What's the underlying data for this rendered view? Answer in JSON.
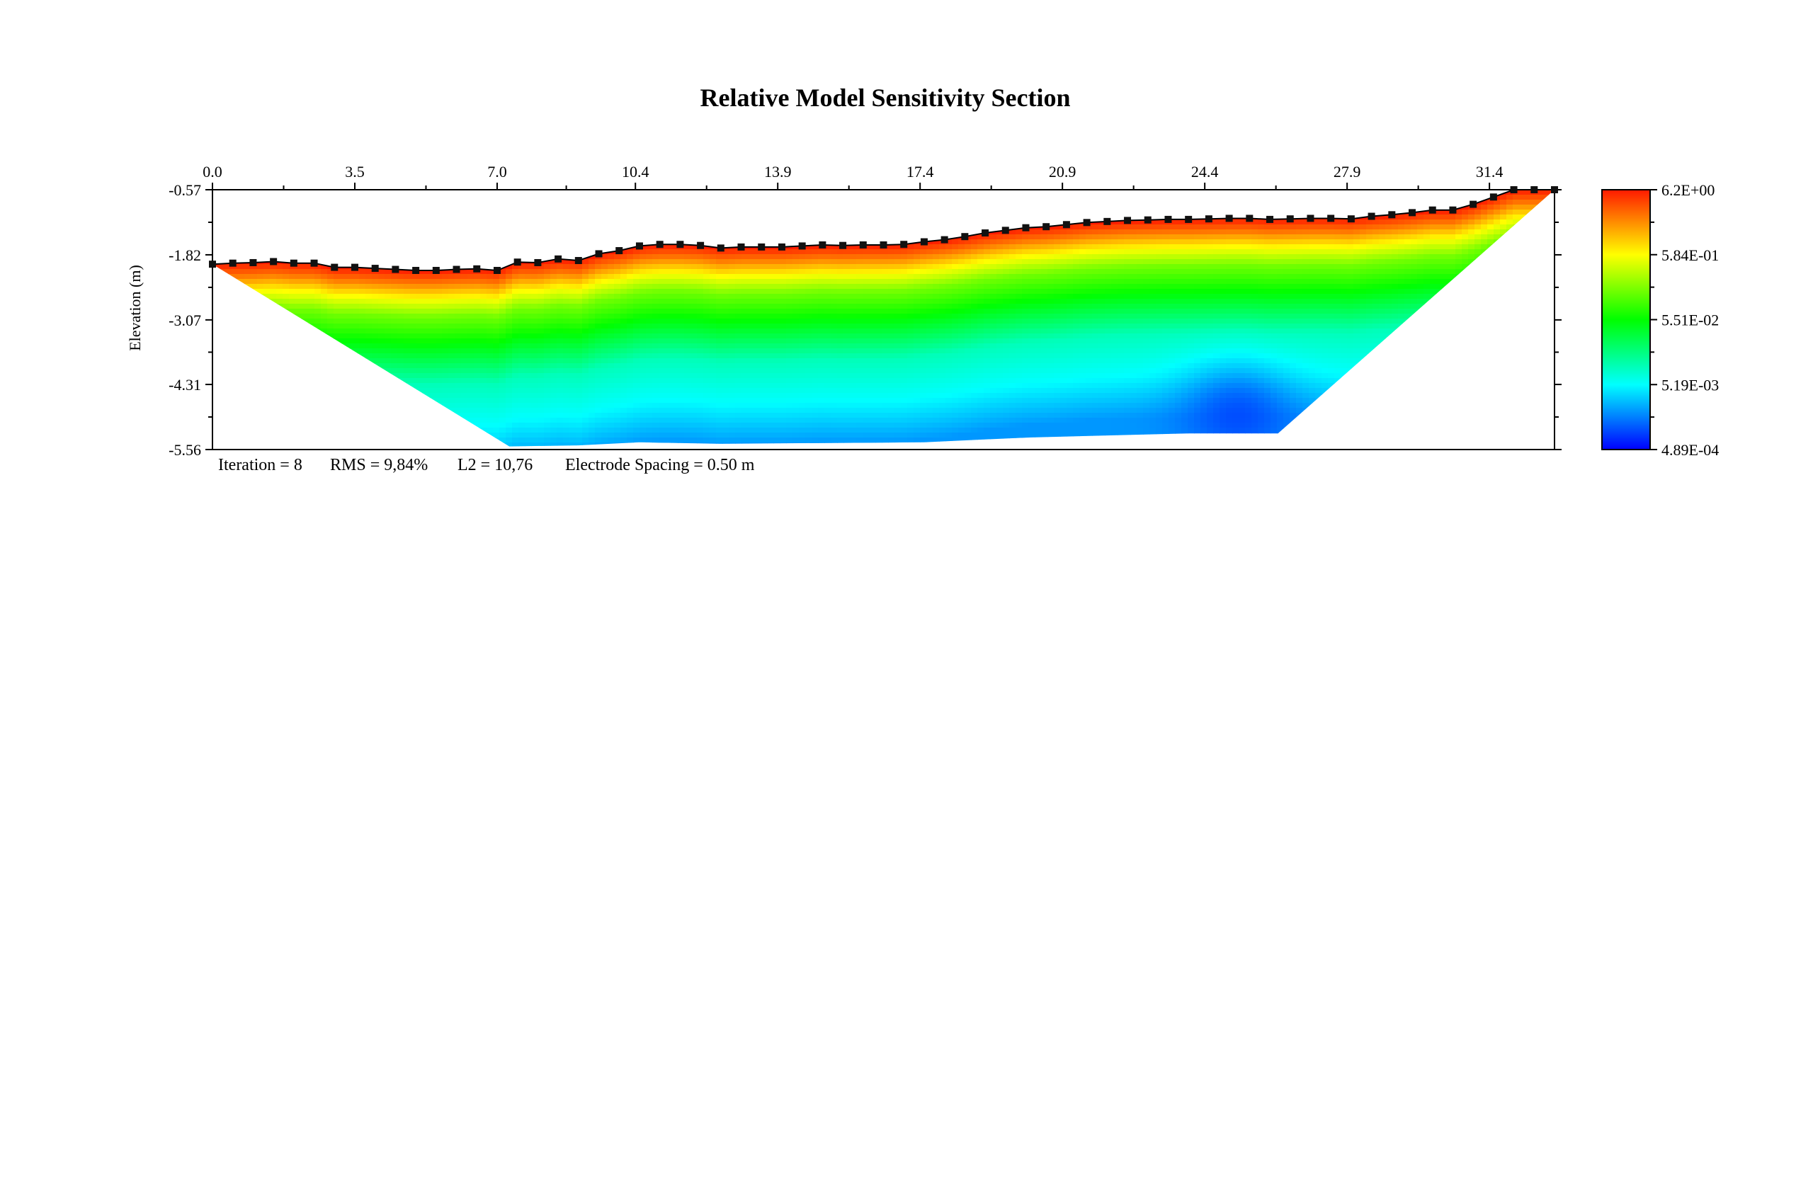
{
  "chart_data": {
    "type": "heatmap",
    "title": "Relative Model Sensitivity Section",
    "ylabel": "Elevation (m)",
    "xlabel": "",
    "x_ticks": [
      "0.0",
      "3.5",
      "7.0",
      "10.4",
      "13.9",
      "17.4",
      "20.9",
      "24.4",
      "27.9",
      "31.4"
    ],
    "y_ticks": [
      "-0.57",
      "-1.82",
      "-3.07",
      "-4.31",
      "-5.56"
    ],
    "x_range": [
      0.0,
      33.0
    ],
    "y_range": [
      -5.56,
      -0.57
    ],
    "colorbar": {
      "labels": [
        "6.2E+00",
        "5.84E-01",
        "5.51E-02",
        "5.19E-03",
        "4.89E-04"
      ],
      "colors": [
        "#ff1a00",
        "#ffff00",
        "#00ff00",
        "#00ffff",
        "#0000ff"
      ],
      "scale": "log"
    },
    "footer": {
      "iteration": "Iteration = 8",
      "rms": "RMS = 9,84%",
      "l2": "L2 = 10,76",
      "spacing": "Electrode Spacing = 0.50 m"
    },
    "surface_profile": {
      "x": [
        0.0,
        0.5,
        1.0,
        1.5,
        2.0,
        2.5,
        3.0,
        3.5,
        4.0,
        4.5,
        5.0,
        5.5,
        6.0,
        6.5,
        7.0,
        7.5,
        8.0,
        8.5,
        9.0,
        9.5,
        10.0,
        10.5,
        11.0,
        11.5,
        12.0,
        12.5,
        13.0,
        13.5,
        14.0,
        14.5,
        15.0,
        15.5,
        16.0,
        16.5,
        17.0,
        17.5,
        18.0,
        18.5,
        19.0,
        19.5,
        20.0,
        20.5,
        21.0,
        21.5,
        22.0,
        22.5,
        23.0,
        23.5,
        24.0,
        24.5,
        25.0,
        25.5,
        26.0,
        26.5,
        27.0,
        27.5,
        28.0,
        28.5,
        29.0,
        29.5,
        30.0,
        30.5,
        31.0,
        31.5,
        32.0,
        32.5,
        33.0
      ],
      "elevation": [
        -2.0,
        -1.98,
        -1.97,
        -1.95,
        -1.98,
        -1.98,
        -2.06,
        -2.06,
        -2.08,
        -2.1,
        -2.12,
        -2.12,
        -2.1,
        -2.09,
        -2.12,
        -1.96,
        -1.97,
        -1.9,
        -1.93,
        -1.8,
        -1.74,
        -1.65,
        -1.62,
        -1.62,
        -1.64,
        -1.69,
        -1.67,
        -1.67,
        -1.67,
        -1.65,
        -1.63,
        -1.64,
        -1.63,
        -1.63,
        -1.62,
        -1.57,
        -1.53,
        -1.47,
        -1.4,
        -1.35,
        -1.3,
        -1.28,
        -1.24,
        -1.2,
        -1.18,
        -1.16,
        -1.15,
        -1.14,
        -1.14,
        -1.13,
        -1.12,
        -1.12,
        -1.14,
        -1.13,
        -1.12,
        -1.12,
        -1.13,
        -1.08,
        -1.05,
        -1.01,
        -0.96,
        -0.96,
        -0.85,
        -0.71,
        -0.57,
        -0.57,
        -0.57
      ]
    },
    "model_bottom": {
      "x": [
        0.0,
        7.3,
        9.0,
        10.5,
        12.5,
        17.5,
        20.0,
        24.0,
        26.2,
        33.0
      ],
      "elevation": [
        -2.0,
        -5.5,
        -5.48,
        -5.42,
        -5.45,
        -5.42,
        -5.33,
        -5.25,
        -5.25,
        -0.57
      ]
    },
    "sensitivity_levels": [
      {
        "depth_below_surface_m": 0.0,
        "log10": 0.79
      },
      {
        "depth_below_surface_m": 0.25,
        "log10": 0.3
      },
      {
        "depth_below_surface_m": 0.55,
        "log10": -0.23
      },
      {
        "depth_below_surface_m": 0.9,
        "log10": -0.8
      },
      {
        "depth_below_surface_m": 1.4,
        "log10": -1.26
      },
      {
        "depth_below_surface_m": 2.2,
        "log10": -2.0
      },
      {
        "depth_below_surface_m": 3.0,
        "log10": -2.28
      },
      {
        "depth_below_surface_m": 3.8,
        "log10": -2.7
      }
    ],
    "low_sensitivity_zone": {
      "x": 25.2,
      "elevation": -4.85,
      "log10": -3.1
    }
  }
}
